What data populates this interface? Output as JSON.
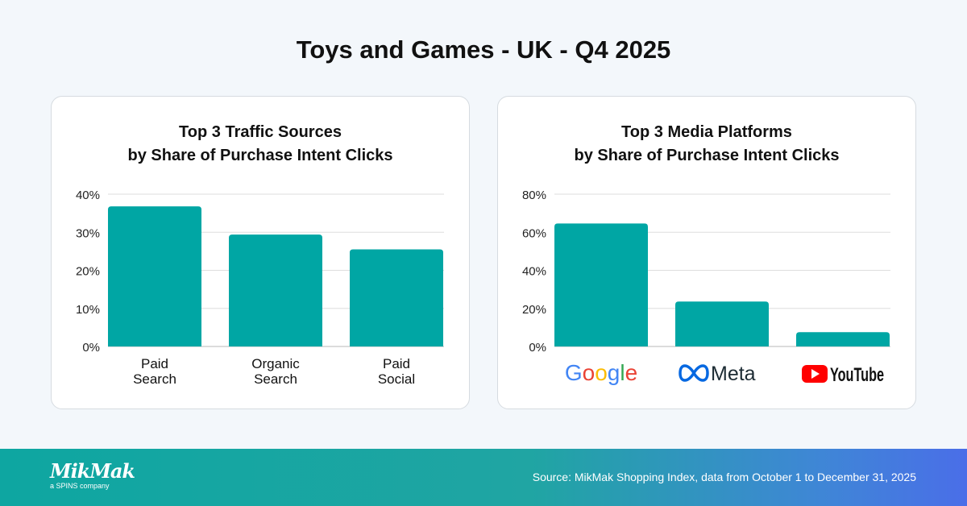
{
  "page_title": "Toys and Games - UK - Q4 2025",
  "chart_data": [
    {
      "type": "bar",
      "title_line1": "Top 3 Traffic Sources",
      "title_line2": "by Share of Purchase Intent Clicks",
      "categories": [
        "Paid\nSearch",
        "Organic\nSearch",
        "Paid\nSocial"
      ],
      "values": [
        36.8,
        29.4,
        25.5
      ],
      "ylim": [
        0,
        40
      ],
      "yticks": [
        "0%",
        "10%",
        "20%",
        "30%",
        "40%"
      ],
      "ytick_values": [
        0,
        10,
        20,
        30,
        40
      ],
      "grid": true,
      "bar_color": "#00a6a4"
    },
    {
      "type": "bar",
      "title_line1": "Top 3 Media Platforms",
      "title_line2": "by Share of Purchase Intent Clicks",
      "categories": [
        "Google",
        "Meta",
        "YouTube"
      ],
      "category_icons": [
        "google-logo",
        "meta-logo",
        "youtube-logo"
      ],
      "values": [
        64.6,
        23.6,
        7.5
      ],
      "ylim": [
        0,
        80
      ],
      "yticks": [
        "0%",
        "20%",
        "40%",
        "60%",
        "80%"
      ],
      "ytick_values": [
        0,
        20,
        40,
        60,
        80
      ],
      "grid": true,
      "bar_color": "#00a6a4"
    }
  ],
  "footer": {
    "brand": "MikMak",
    "brand_sub": "a SPINS company",
    "source": "Source: MikMak Shopping Index, data from October 1 to December 31, 2025"
  }
}
